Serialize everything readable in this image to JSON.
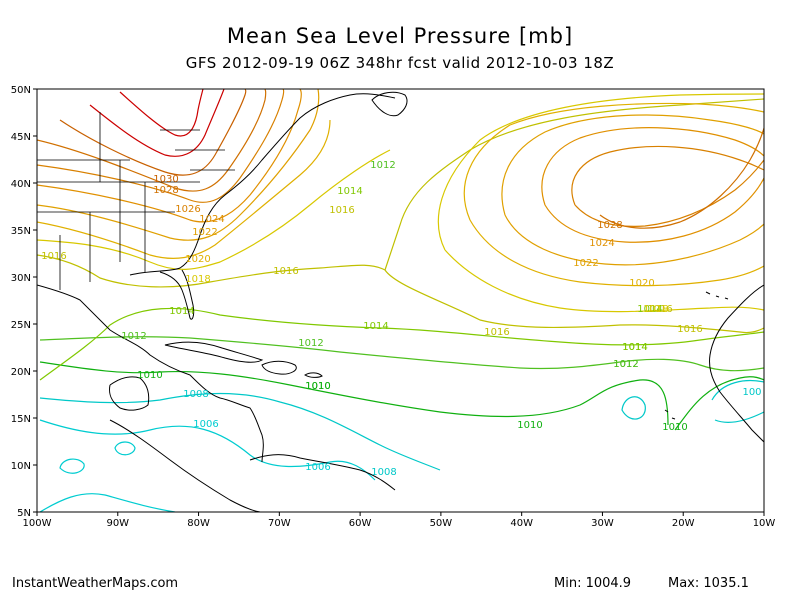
{
  "title": "Mean Sea Level Pressure [mb]",
  "subtitle": "GFS 2012-09-19 06Z 348hr fcst valid 2012-10-03 18Z",
  "footer": {
    "site": "InstantWeatherMaps.com",
    "min_label": "Min: 1004.9",
    "max_label": "Max: 1035.1"
  },
  "axes": {
    "lat_ticks": [
      "50N",
      "45N",
      "40N",
      "35N",
      "30N",
      "25N",
      "20N",
      "15N",
      "10N",
      "5N"
    ],
    "lon_ticks": [
      "100W",
      "90W",
      "80W",
      "70W",
      "60W",
      "50W",
      "40W",
      "30W",
      "20W",
      "10W"
    ]
  },
  "colors": {
    "c1006": "#00ccd0",
    "c1008": "#00c8c8",
    "c1010": "#10b010",
    "c1012": "#50c020",
    "c1014": "#80c800",
    "c1016": "#c0c000",
    "c1018": "#d8c800",
    "c1020": "#e0b000",
    "c1022": "#e0a000",
    "c1024": "#e09000",
    "c1026": "#d88000",
    "c1028": "#d07000",
    "c1030": "#c86000",
    "high": "#cc0000",
    "land": "#000000"
  },
  "contour_labels": [
    {
      "text": "1030",
      "color": "c1030"
    },
    {
      "text": "1028",
      "color": "c1028"
    },
    {
      "text": "1026",
      "color": "c1026"
    },
    {
      "text": "1024",
      "color": "c1024"
    },
    {
      "text": "1022",
      "color": "c1022"
    },
    {
      "text": "1020",
      "color": "c1020"
    },
    {
      "text": "1018",
      "color": "c1018"
    },
    {
      "text": "1016",
      "color": "c1016"
    },
    {
      "text": "1014",
      "color": "c1014"
    },
    {
      "text": "1012",
      "color": "c1012"
    },
    {
      "text": "1010",
      "color": "c1010"
    },
    {
      "text": "1008",
      "color": "c1008"
    },
    {
      "text": "1006",
      "color": "c1006"
    },
    {
      "text": "1016",
      "color": "c1016"
    },
    {
      "text": "1014",
      "color": "c1014"
    },
    {
      "text": "1012",
      "color": "c1012"
    },
    {
      "text": "1010",
      "color": "c1010"
    },
    {
      "text": "1016",
      "color": "c1016"
    },
    {
      "text": "1014",
      "color": "c1014"
    },
    {
      "text": "1012",
      "color": "c1012"
    },
    {
      "text": "1008",
      "color": "c1008"
    },
    {
      "text": "1006",
      "color": "c1006"
    },
    {
      "text": "1012",
      "color": "c1012"
    },
    {
      "text": "1014",
      "color": "c1014"
    },
    {
      "text": "1016",
      "color": "c1016"
    },
    {
      "text": "1014",
      "color": "c1014"
    },
    {
      "text": "1016",
      "color": "c1016"
    },
    {
      "text": "1010",
      "color": "c1010"
    },
    {
      "text": "1028",
      "color": "c1028"
    },
    {
      "text": "1024",
      "color": "c1024"
    },
    {
      "text": "1022",
      "color": "c1022"
    },
    {
      "text": "1020",
      "color": "c1020"
    },
    {
      "text": "1018",
      "color": "c1018"
    },
    {
      "text": "1016",
      "color": "c1016"
    },
    {
      "text": "1014",
      "color": "c1014"
    },
    {
      "text": "1012",
      "color": "c1012"
    },
    {
      "text": "1010",
      "color": "c1010"
    },
    {
      "text": "1010",
      "color": "c1010"
    },
    {
      "text": "100",
      "color": "c1008"
    }
  ]
}
